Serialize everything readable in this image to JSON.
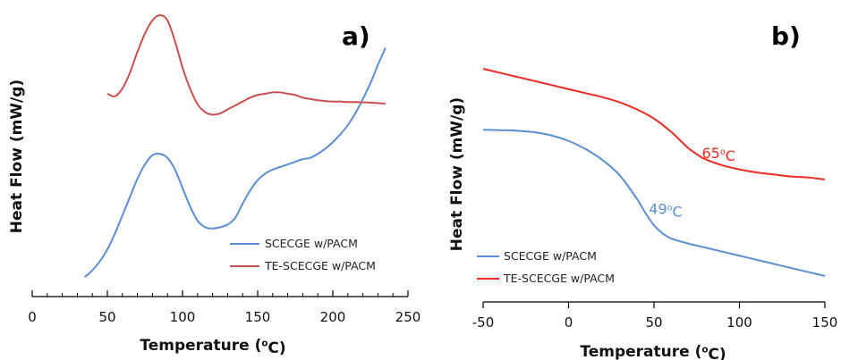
{
  "chart_data": [
    {
      "type": "line",
      "panel_label": "a)",
      "xlabel": "Temperature (°C)",
      "ylabel": "Heat Flow (mW/g)",
      "xlim": [
        0,
        250
      ],
      "xticks": [
        0,
        50,
        100,
        150,
        200,
        250
      ],
      "yticks": "none",
      "grid": false,
      "legend": "lower-right",
      "series": [
        {
          "name": "SCECGE w/PACM",
          "color": "#5b8fd1",
          "x": [
            35,
            40,
            45,
            50,
            55,
            60,
            65,
            70,
            75,
            80,
            85,
            90,
            95,
            100,
            105,
            110,
            115,
            120,
            125,
            130,
            135,
            140,
            145,
            150,
            155,
            160,
            165,
            170,
            175,
            180,
            185,
            190,
            195,
            200,
            205,
            210,
            215,
            220,
            225,
            230,
            235
          ],
          "y": [
            0.0,
            0.025,
            0.06,
            0.105,
            0.165,
            0.235,
            0.305,
            0.375,
            0.43,
            0.465,
            0.47,
            0.455,
            0.41,
            0.34,
            0.27,
            0.215,
            0.19,
            0.185,
            0.19,
            0.2,
            0.225,
            0.28,
            0.33,
            0.37,
            0.395,
            0.41,
            0.42,
            0.43,
            0.44,
            0.45,
            0.455,
            0.47,
            0.49,
            0.515,
            0.545,
            0.58,
            0.625,
            0.68,
            0.74,
            0.81,
            0.875
          ]
        },
        {
          "name": "TE-SCECGE w/PACM",
          "color": "#c9504f",
          "x": [
            50,
            55,
            60,
            65,
            70,
            75,
            80,
            85,
            90,
            95,
            100,
            105,
            110,
            115,
            120,
            125,
            130,
            135,
            140,
            145,
            150,
            155,
            160,
            165,
            170,
            175,
            180,
            185,
            190,
            195,
            200,
            205,
            210,
            215,
            220,
            225,
            230,
            235
          ],
          "y": [
            0.7,
            0.69,
            0.72,
            0.78,
            0.86,
            0.93,
            0.98,
            1.0,
            0.98,
            0.9,
            0.8,
            0.72,
            0.66,
            0.63,
            0.62,
            0.625,
            0.64,
            0.655,
            0.67,
            0.685,
            0.695,
            0.7,
            0.705,
            0.705,
            0.7,
            0.695,
            0.685,
            0.68,
            0.675,
            0.672,
            0.67,
            0.67,
            0.668,
            0.668,
            0.667,
            0.666,
            0.664,
            0.662
          ]
        }
      ]
    },
    {
      "type": "line",
      "panel_label": "b)",
      "xlabel": "Temperature (°C)",
      "ylabel": "Heat Flow (mW/g)",
      "xlim": [
        -50,
        150
      ],
      "xticks": [
        -50,
        0,
        50,
        100,
        150
      ],
      "yticks": "none",
      "grid": false,
      "legend": "lower-left",
      "annotations": [
        {
          "text": "65°C",
          "x": 78,
          "y": 0.56,
          "color": "#ee2a24"
        },
        {
          "text": "49°C",
          "x": 47,
          "y": 0.285,
          "color": "#5b8fd1"
        }
      ],
      "series": [
        {
          "name": "SCECGE w/PACM",
          "color": "#5b8fd1",
          "x": [
            -50,
            -40,
            -30,
            -20,
            -10,
            0,
            10,
            20,
            30,
            40,
            45,
            50,
            55,
            60,
            70,
            80,
            90,
            100,
            110,
            120,
            130,
            140,
            150
          ],
          "y": [
            0.7,
            0.698,
            0.695,
            0.688,
            0.672,
            0.645,
            0.605,
            0.55,
            0.475,
            0.36,
            0.29,
            0.23,
            0.19,
            0.165,
            0.14,
            0.12,
            0.1,
            0.08,
            0.06,
            0.04,
            0.02,
            0.0,
            -0.02
          ]
        },
        {
          "name": "TE-SCECGE w/PACM",
          "color": "#ee2a24",
          "x": [
            -50,
            -40,
            -30,
            -20,
            -10,
            0,
            10,
            20,
            30,
            40,
            50,
            60,
            65,
            70,
            75,
            80,
            90,
            100,
            110,
            120,
            130,
            140,
            150
          ],
          "y": [
            1.0,
            0.98,
            0.96,
            0.94,
            0.92,
            0.9,
            0.88,
            0.86,
            0.835,
            0.8,
            0.755,
            0.69,
            0.65,
            0.61,
            0.58,
            0.555,
            0.525,
            0.505,
            0.49,
            0.48,
            0.47,
            0.465,
            0.455
          ]
        }
      ]
    }
  ]
}
